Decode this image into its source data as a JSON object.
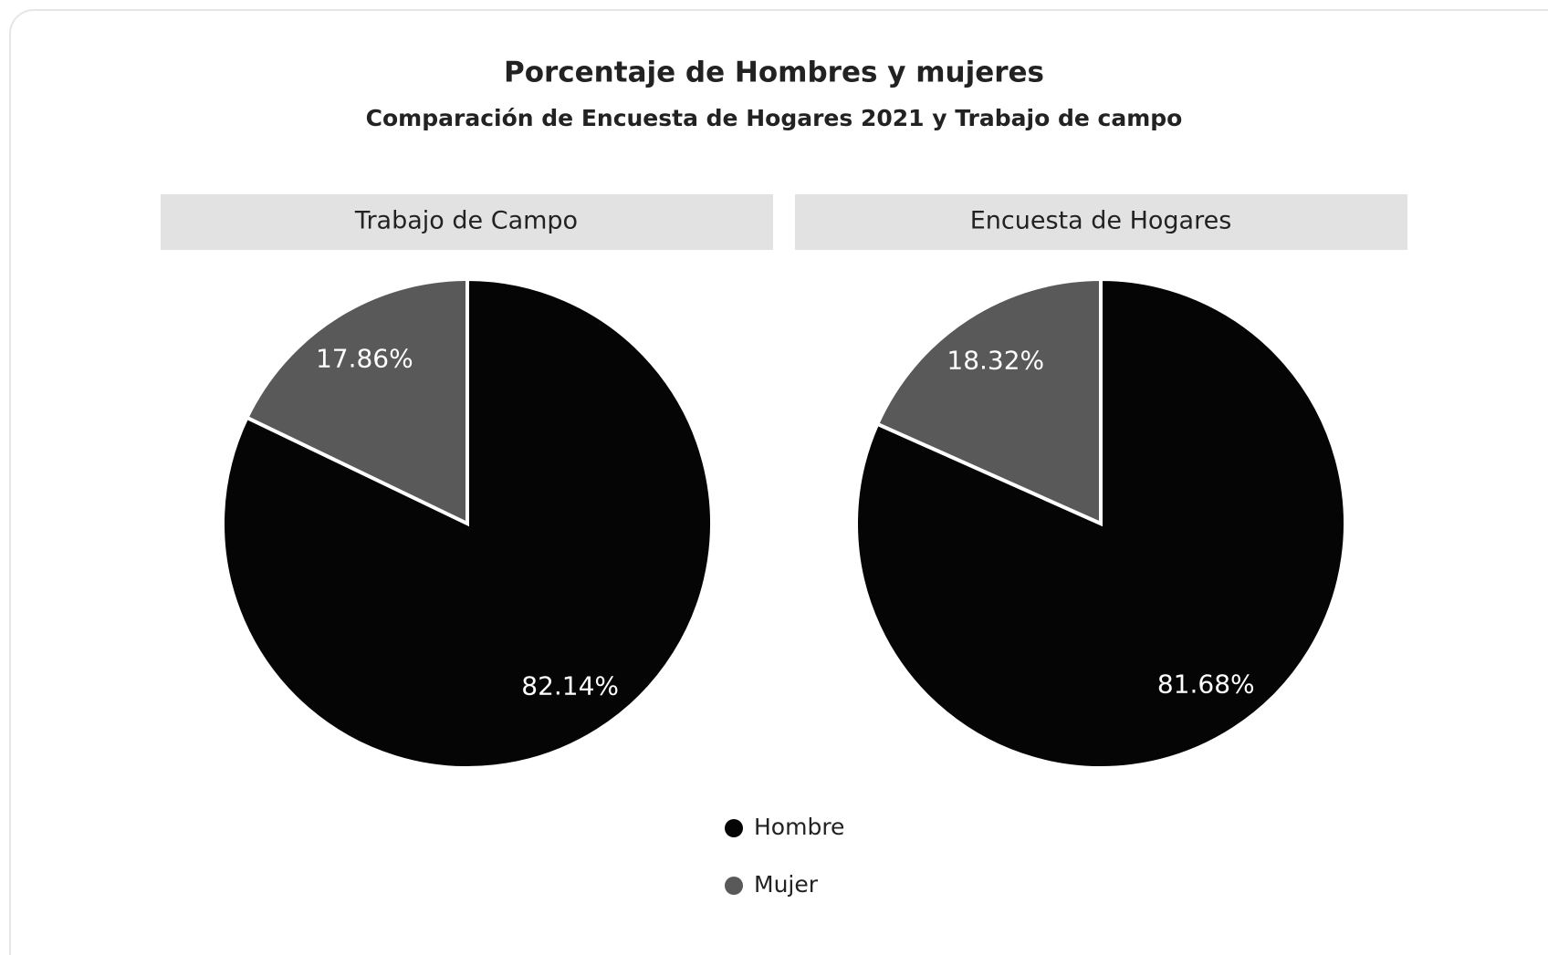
{
  "title": "Porcentaje de Hombres y mujeres",
  "subtitle": "Comparación de Encuesta de Hogares 2021 y Trabajo de campo",
  "chart_data": [
    {
      "type": "pie",
      "title": "Trabajo de Campo",
      "categories": [
        "Hombre",
        "Mujer"
      ],
      "values": [
        82.14,
        17.86
      ],
      "value_labels": [
        "82.14%",
        "17.86%"
      ],
      "colors": [
        "#050505",
        "#595959"
      ]
    },
    {
      "type": "pie",
      "title": "Encuesta de Hogares",
      "categories": [
        "Hombre",
        "Mujer"
      ],
      "values": [
        81.68,
        18.32
      ],
      "value_labels": [
        "81.68%",
        "18.32%"
      ],
      "colors": [
        "#050505",
        "#595959"
      ]
    }
  ]
}
